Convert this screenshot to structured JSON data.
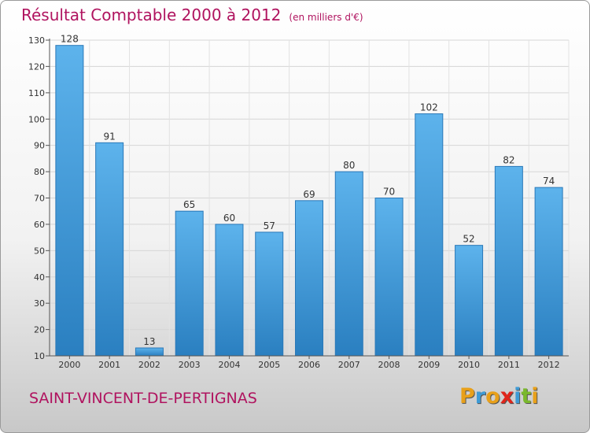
{
  "header": {
    "title": "Résultat Comptable 2000 à 2012",
    "unit": "(en milliers d'€)"
  },
  "footer": {
    "location": "SAINT-VINCENT-DE-PERTIGNAS"
  },
  "logo": {
    "letters": [
      "P",
      "r",
      "o",
      "x",
      "i",
      "t",
      "i"
    ],
    "colors": [
      "#e8a01a",
      "#3e9bd6",
      "#e8a01a",
      "#e0251b",
      "#3e9bd6",
      "#7ab82d",
      "#e8a01a"
    ]
  },
  "chart_data": {
    "type": "bar",
    "title": "Résultat Comptable 2000 à 2012",
    "subtitle": "(en milliers d'€)",
    "categories": [
      "2000",
      "2001",
      "2002",
      "2003",
      "2004",
      "2005",
      "2006",
      "2007",
      "2008",
      "2009",
      "2010",
      "2011",
      "2012"
    ],
    "values": [
      128,
      91,
      13,
      65,
      60,
      57,
      69,
      80,
      70,
      102,
      52,
      82,
      74
    ],
    "ylim": [
      10,
      130
    ],
    "yticks": [
      10,
      20,
      30,
      40,
      50,
      60,
      70,
      80,
      90,
      100,
      110,
      120,
      130
    ],
    "grid": true,
    "bar_color": "#3d95d6",
    "bar_color_light": "#5db3ec"
  }
}
